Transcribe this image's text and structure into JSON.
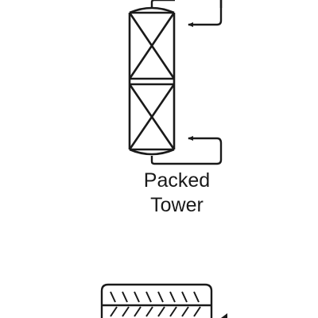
{
  "diagram": {
    "tower_label_line1": "Packed",
    "tower_label_line2": "Tower",
    "stroke_color": "#1a1a1a",
    "background_color": "#ffffff"
  }
}
